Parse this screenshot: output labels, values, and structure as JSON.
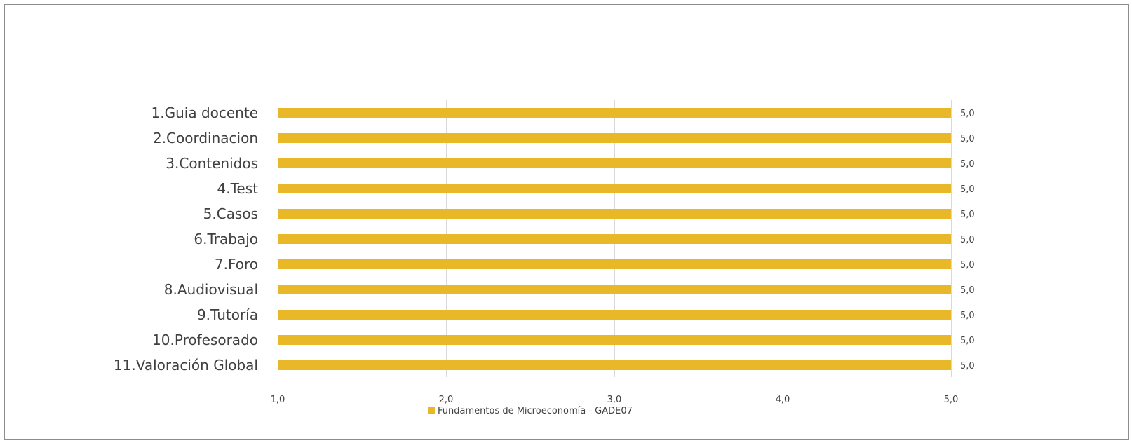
{
  "chart_data": {
    "type": "bar",
    "orientation": "horizontal",
    "title": "",
    "xlabel": "",
    "ylabel": "",
    "categories": [
      "1.Guia docente",
      "2.Coordinacion",
      "3.Contenidos",
      "4.Test",
      "5.Casos",
      "6.Trabajo",
      "7.Foro",
      "8.Audiovisual",
      "9.Tutoría",
      "10.Profesorado",
      "11.Valoración Global"
    ],
    "series": [
      {
        "name": "Fundamentos de Microeconomía - GADE07",
        "values": [
          5.0,
          5.0,
          5.0,
          5.0,
          5.0,
          5.0,
          5.0,
          5.0,
          5.0,
          5.0,
          5.0
        ],
        "value_labels": [
          "5,0",
          "5,0",
          "5,0",
          "5,0",
          "5,0",
          "5,0",
          "5,0",
          "5,0",
          "5,0",
          "5,0",
          "5,0"
        ],
        "color": "#E9B829"
      }
    ],
    "xlim": [
      1.0,
      5.0
    ],
    "x_ticks": [
      1.0,
      2.0,
      3.0,
      4.0,
      5.0
    ],
    "x_tick_labels": [
      "1,0",
      "2,0",
      "3,0",
      "4,0",
      "5,0"
    ],
    "grid": "vertical",
    "legend": "bottom",
    "colors": {
      "bar": "#E9B829",
      "grid": "#d9d9d9",
      "text": "#404040",
      "border": "#8c8c8c"
    }
  }
}
